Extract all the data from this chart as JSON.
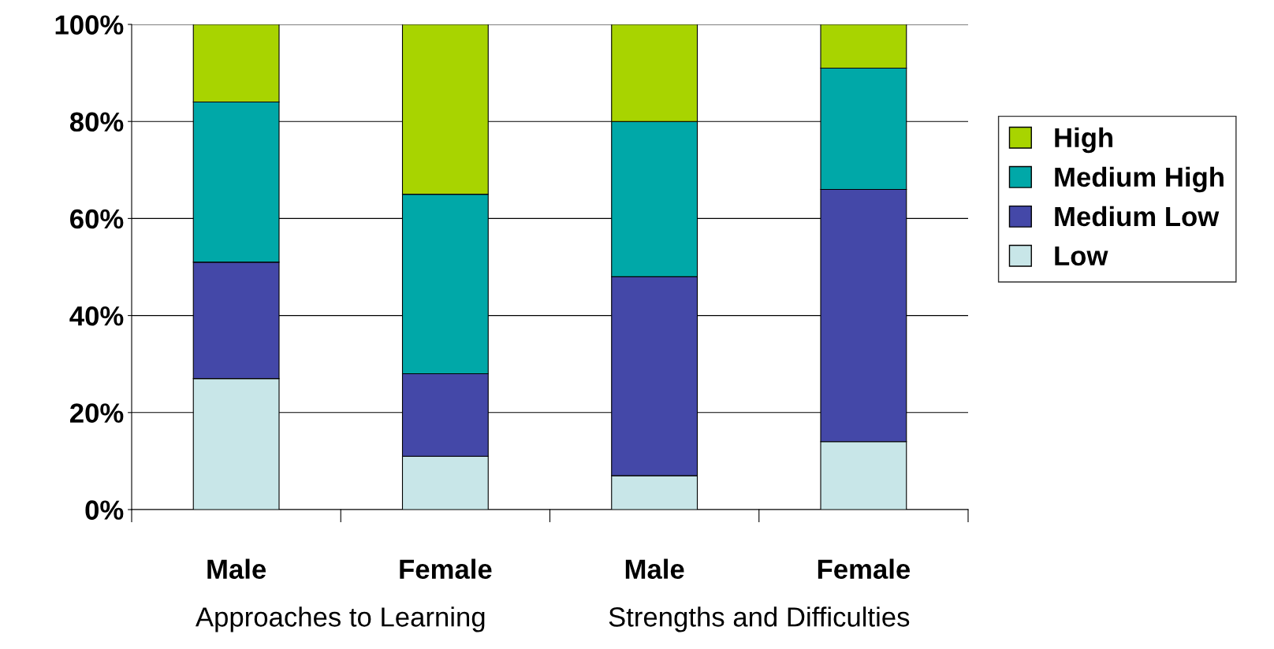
{
  "chart_data": {
    "type": "bar",
    "stacked": true,
    "categories": [
      "Male",
      "Female",
      "Male",
      "Female"
    ],
    "series": [
      {
        "name": "Low",
        "color": "#c8e6e8",
        "values": [
          27,
          11,
          7,
          14
        ]
      },
      {
        "name": "Medium Low",
        "color": "#4448a8",
        "values": [
          24,
          17,
          41,
          52
        ]
      },
      {
        "name": "Medium High",
        "color": "#00a8a8",
        "values": [
          33,
          37,
          32,
          25
        ]
      },
      {
        "name": "High",
        "color": "#a8d400",
        "values": [
          16,
          35,
          20,
          9
        ]
      }
    ],
    "ylim": [
      0,
      100
    ],
    "yticks": [
      {
        "value": 0,
        "label": "0%"
      },
      {
        "value": 20,
        "label": "20%"
      },
      {
        "value": 40,
        "label": "40%"
      },
      {
        "value": 60,
        "label": "60%"
      },
      {
        "value": 80,
        "label": "80%"
      },
      {
        "value": 100,
        "label": "100%"
      }
    ],
    "grid": "y",
    "legend": "right",
    "annotations": [
      "Approaches to Learning",
      "Strengths and Difficulties"
    ]
  }
}
